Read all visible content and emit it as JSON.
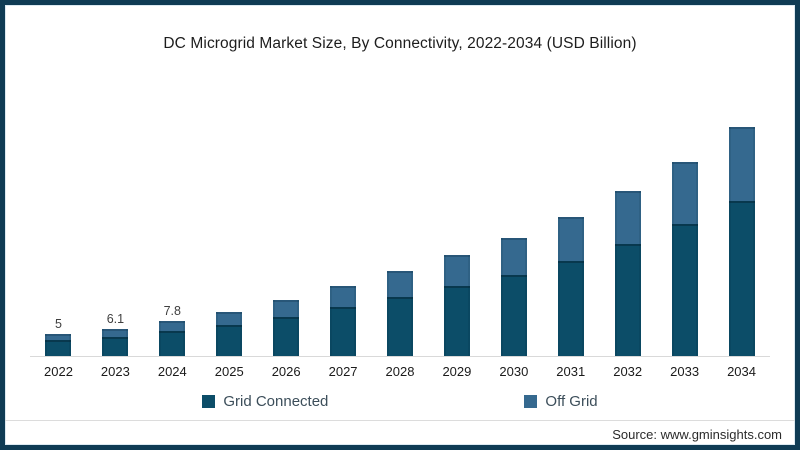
{
  "title": "DC Microgrid Market Size, By Connectivity, 2022-2034 (USD Billion)",
  "frame": {
    "border_color": "#0f3b54",
    "background": "#ffffff",
    "axis_line_color": "#d9d9d9",
    "separator_color": "#dcdcdc"
  },
  "chart_data": {
    "type": "bar",
    "stacked": true,
    "title": "DC Microgrid Market Size, By Connectivity, 2022-2034 (USD Billion)",
    "xlabel": "",
    "ylabel": "USD Billion",
    "ylim": [
      0,
      55
    ],
    "grid": false,
    "legend_position": "bottom",
    "categories": [
      "2022",
      "2023",
      "2024",
      "2025",
      "2026",
      "2027",
      "2028",
      "2029",
      "2030",
      "2031",
      "2032",
      "2033",
      "2034"
    ],
    "series": [
      {
        "name": "Grid Connected",
        "color": "#0c4d68",
        "values": [
          3.5,
          4.3,
          5.5,
          6.9,
          8.7,
          10.9,
          13.2,
          15.5,
          18.0,
          21.1,
          24.9,
          29.4,
          34.5
        ]
      },
      {
        "name": "Off Grid",
        "color": "#35698f",
        "values": [
          1.5,
          1.8,
          2.3,
          2.9,
          3.7,
          4.7,
          5.8,
          6.9,
          8.3,
          9.9,
          11.7,
          13.8,
          16.5
        ]
      }
    ],
    "totals": [
      5.0,
      6.1,
      7.8,
      9.8,
      12.4,
      15.6,
      19.0,
      22.4,
      26.3,
      31.0,
      36.6,
      43.2,
      51.0
    ],
    "shown_data_labels": [
      "5",
      "6.1",
      "7.8",
      "",
      "",
      "",
      "",
      "",
      "",
      "",
      "",
      "",
      ""
    ]
  },
  "legend": {
    "items": [
      {
        "label": "Grid Connected",
        "color": "#0c4d68"
      },
      {
        "label": "Off Grid",
        "color": "#35698f"
      }
    ]
  },
  "source": {
    "text": "Source: www.gminsights.com"
  }
}
